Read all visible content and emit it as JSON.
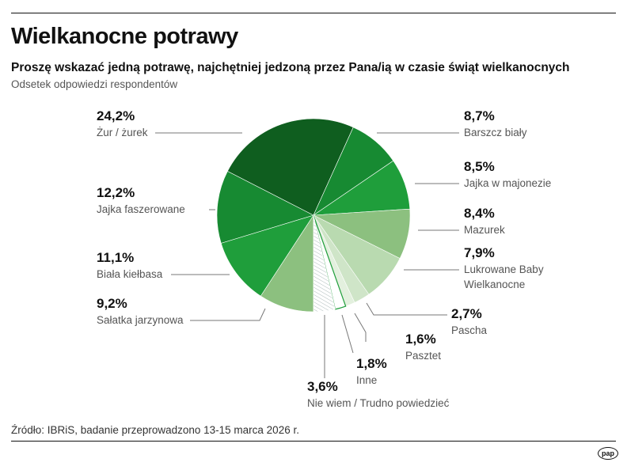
{
  "header": {
    "title": "Wielkanocne potrawy",
    "subtitle": "Proszę wskazać jedną potrawę, najchętniej jedzoną przez Pana/ią w czasie świąt wielkanocnych",
    "note": "Odsetek odpowiedzi respondentów"
  },
  "footer": {
    "source": "Źródło: IBRiS, badanie przeprowadzono 13-15 marca 2026 r.",
    "logo": "pap"
  },
  "chart_data": {
    "type": "pie",
    "unit": "%",
    "slices": [
      {
        "label": "Sałatka jarzynowa",
        "value": 9.2,
        "display": "9,2%",
        "color": "#8cc07f"
      },
      {
        "label": "Biała kiełbasa",
        "value": 11.1,
        "display": "11,1%",
        "color": "#1f9e3b"
      },
      {
        "label": "Jajka faszerowane",
        "value": 12.2,
        "display": "12,2%",
        "color": "#178a32"
      },
      {
        "label": "Żur / żurek",
        "value": 24.2,
        "display": "24,2%",
        "color": "#0f5e1f"
      },
      {
        "label": "Barszcz biały",
        "value": 8.7,
        "display": "8,7%",
        "color": "#178a32"
      },
      {
        "label": "Jajka w majonezie",
        "value": 8.5,
        "display": "8,5%",
        "color": "#1f9e3b"
      },
      {
        "label": "Mazurek",
        "value": 8.4,
        "display": "8,4%",
        "color": "#8cc07f"
      },
      {
        "label": "Lukrowane Baby Wielkanocne",
        "value": 7.9,
        "display": "7,9%",
        "color": "#b9dab0"
      },
      {
        "label": "Pascha",
        "value": 2.7,
        "display": "2,7%",
        "color": "#cfe5c8"
      },
      {
        "label": "Pasztet",
        "value": 1.6,
        "display": "1,6%",
        "color": "#e3f0de"
      },
      {
        "label": "Inne",
        "value": 1.8,
        "display": "1,8%",
        "color": "#ffffff"
      },
      {
        "label": "Nie wiem / Trudno powiedzieć",
        "value": 3.6,
        "display": "3,6%",
        "color": "hatched"
      }
    ]
  }
}
